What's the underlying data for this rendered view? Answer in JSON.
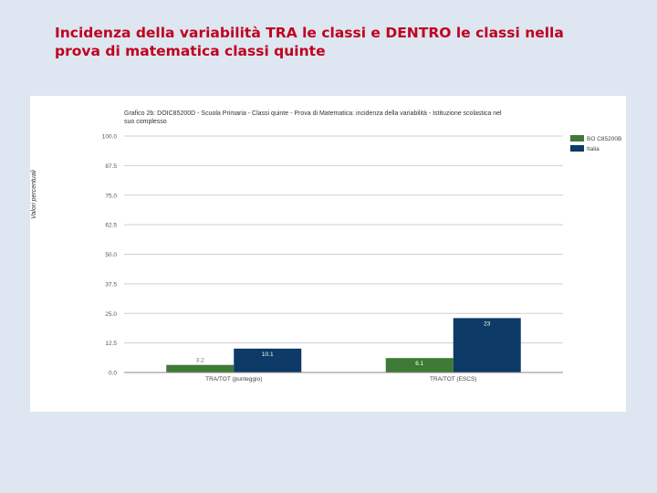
{
  "slide": {
    "title": "Incidenza della variabilità TRA le classi e DENTRO le classi nella prova di matematica classi quinte"
  },
  "chart_data": {
    "type": "bar",
    "title": "Grafico 2b: DOIC85200D - Scuola Primaria - Classi quinte - Prova di Matematica: incidenza della variabilità - Istituzione scolastica nel suo complesso",
    "xlabel": "",
    "ylabel": "Valori percentuali",
    "ylim": [
      0,
      100
    ],
    "yticks": [
      0,
      12.5,
      25,
      37.5,
      50,
      62.5,
      75,
      87.5,
      100
    ],
    "ytick_labels": [
      "0.0",
      "12.5",
      "25.0",
      "37.5",
      "50.0",
      "62.5",
      "75.0",
      "87.5",
      "100.0"
    ],
    "categories": [
      "TRA/TOT (punteggio)",
      "TRA/TOT (ESCS)"
    ],
    "series": [
      {
        "name": "BO C85200B",
        "color": "#3e7a35",
        "values": [
          3.2,
          6.1
        ],
        "labels": [
          "3.2",
          "6.1"
        ]
      },
      {
        "name": "Italia",
        "color": "#0d3a66",
        "values": [
          10.1,
          23
        ],
        "labels": [
          "10.1",
          "23"
        ]
      }
    ],
    "grid": true,
    "legend": "top-right"
  }
}
